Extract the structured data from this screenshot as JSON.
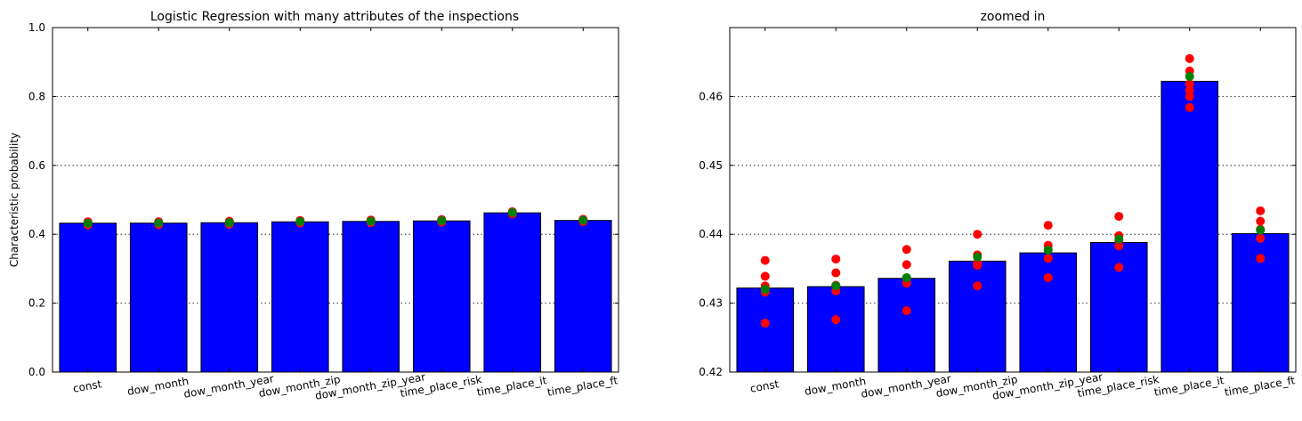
{
  "chart_data": [
    {
      "type": "bar",
      "title": "Logistic Regression with many attributes of the inspections",
      "xlabel": "",
      "ylabel": "Characteristic probability",
      "ylim": [
        0,
        1.0
      ],
      "yticks": [
        0.0,
        0.2,
        0.4,
        0.6,
        0.8,
        1.0
      ],
      "ytick_labels": [
        "0.0",
        "0.2",
        "0.4",
        "0.6",
        "0.8",
        "1.0"
      ],
      "grid": "y",
      "categories": [
        "const",
        "dow_month",
        "dow_month_year",
        "dow_month_zip",
        "dow_month_zip_year",
        "time_place_risk",
        "time_place_it",
        "time_place_ft"
      ],
      "values": [
        0.4322,
        0.4324,
        0.4336,
        0.4361,
        0.4373,
        0.4388,
        0.4622,
        0.4401
      ],
      "bar_color": "#0000ff",
      "series": [
        {
          "name": "",
          "type": "scatter",
          "color": "#ff0000",
          "points": [
            [
              0,
              0.4362
            ],
            [
              0,
              0.4339
            ],
            [
              0,
              0.4325
            ],
            [
              0,
              0.4316
            ],
            [
              0,
              0.4271
            ],
            [
              1,
              0.4364
            ],
            [
              1,
              0.4344
            ],
            [
              1,
              0.4326
            ],
            [
              1,
              0.4318
            ],
            [
              1,
              0.4276
            ],
            [
              2,
              0.4378
            ],
            [
              2,
              0.4356
            ],
            [
              2,
              0.4336
            ],
            [
              2,
              0.4329
            ],
            [
              2,
              0.4289
            ],
            [
              3,
              0.44
            ],
            [
              3,
              0.437
            ],
            [
              3,
              0.4358
            ],
            [
              3,
              0.4355
            ],
            [
              3,
              0.4325
            ],
            [
              4,
              0.4413
            ],
            [
              4,
              0.4384
            ],
            [
              4,
              0.4378
            ],
            [
              4,
              0.4365
            ],
            [
              4,
              0.4337
            ],
            [
              5,
              0.4426
            ],
            [
              5,
              0.4398
            ],
            [
              5,
              0.4391
            ],
            [
              5,
              0.4383
            ],
            [
              5,
              0.4352
            ],
            [
              6,
              0.4655
            ],
            [
              6,
              0.4637
            ],
            [
              6,
              0.4618
            ],
            [
              6,
              0.4609
            ],
            [
              6,
              0.46
            ],
            [
              6,
              0.4584
            ],
            [
              7,
              0.4434
            ],
            [
              7,
              0.4419
            ],
            [
              7,
              0.4407
            ],
            [
              7,
              0.4394
            ],
            [
              7,
              0.4365
            ]
          ]
        },
        {
          "name": "",
          "type": "scatter",
          "color": "#008000",
          "points": [
            [
              0,
              0.432
            ],
            [
              1,
              0.4325
            ],
            [
              2,
              0.4337
            ],
            [
              3,
              0.4367
            ],
            [
              4,
              0.4377
            ],
            [
              5,
              0.4393
            ],
            [
              6,
              0.4629
            ],
            [
              7,
              0.4406
            ]
          ]
        }
      ]
    },
    {
      "type": "bar",
      "title": "zoomed in",
      "xlabel": "",
      "ylabel": "",
      "ylim": [
        0.42,
        0.47
      ],
      "yticks": [
        0.42,
        0.43,
        0.44,
        0.45,
        0.46
      ],
      "ytick_labels": [
        "0.42",
        "0.43",
        "0.44",
        "0.45",
        "0.46"
      ],
      "grid": "y",
      "categories": [
        "const",
        "dow_month",
        "dow_month_year",
        "dow_month_zip",
        "dow_month_zip_year",
        "time_place_risk",
        "time_place_it",
        "time_place_ft"
      ],
      "values": [
        0.4322,
        0.4324,
        0.4336,
        0.4361,
        0.4373,
        0.4388,
        0.4622,
        0.4401
      ],
      "bar_color": "#0000ff",
      "series": [
        {
          "name": "",
          "type": "scatter",
          "color": "#ff0000",
          "points": [
            [
              0,
              0.4362
            ],
            [
              0,
              0.4339
            ],
            [
              0,
              0.4325
            ],
            [
              0,
              0.4316
            ],
            [
              0,
              0.4271
            ],
            [
              1,
              0.4364
            ],
            [
              1,
              0.4344
            ],
            [
              1,
              0.4326
            ],
            [
              1,
              0.4318
            ],
            [
              1,
              0.4276
            ],
            [
              2,
              0.4378
            ],
            [
              2,
              0.4356
            ],
            [
              2,
              0.4336
            ],
            [
              2,
              0.4329
            ],
            [
              2,
              0.4289
            ],
            [
              3,
              0.44
            ],
            [
              3,
              0.437
            ],
            [
              3,
              0.4358
            ],
            [
              3,
              0.4355
            ],
            [
              3,
              0.4325
            ],
            [
              4,
              0.4413
            ],
            [
              4,
              0.4384
            ],
            [
              4,
              0.4378
            ],
            [
              4,
              0.4365
            ],
            [
              4,
              0.4337
            ],
            [
              5,
              0.4426
            ],
            [
              5,
              0.4398
            ],
            [
              5,
              0.4391
            ],
            [
              5,
              0.4383
            ],
            [
              5,
              0.4352
            ],
            [
              6,
              0.4655
            ],
            [
              6,
              0.4637
            ],
            [
              6,
              0.4618
            ],
            [
              6,
              0.4609
            ],
            [
              6,
              0.46
            ],
            [
              6,
              0.4584
            ],
            [
              7,
              0.4434
            ],
            [
              7,
              0.4419
            ],
            [
              7,
              0.4407
            ],
            [
              7,
              0.4394
            ],
            [
              7,
              0.4365
            ]
          ]
        },
        {
          "name": "",
          "type": "scatter",
          "color": "#008000",
          "points": [
            [
              0,
              0.432
            ],
            [
              1,
              0.4325
            ],
            [
              2,
              0.4337
            ],
            [
              3,
              0.4367
            ],
            [
              4,
              0.4377
            ],
            [
              5,
              0.4393
            ],
            [
              6,
              0.4629
            ],
            [
              7,
              0.4406
            ]
          ]
        }
      ]
    }
  ]
}
